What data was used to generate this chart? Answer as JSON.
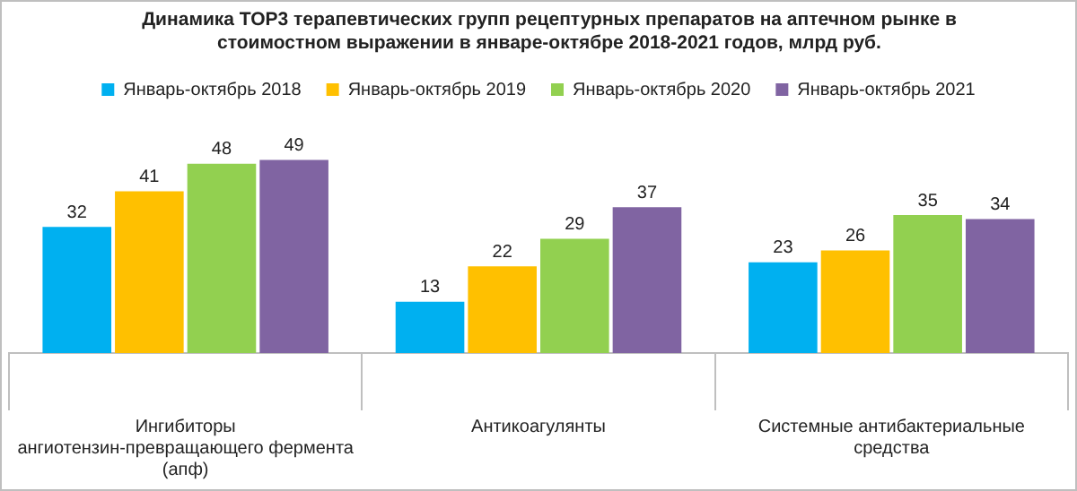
{
  "chart_data": {
    "type": "bar",
    "title": "Динамика ТОР3 терапевтических групп рецептурных  препаратов на аптечном рынке в стоимостном выражении в январе-октябре 2018-2021 годов, млрд руб.",
    "categories": [
      "Ингибиторы ангиотензин-превращающего фермента (апф)",
      "Антикоагулянты",
      "Системные антибактериальные средства"
    ],
    "series": [
      {
        "name": "Январь-октябрь 2018",
        "color": "#00b0f0",
        "values": [
          32,
          13,
          23
        ]
      },
      {
        "name": "Январь-октябрь 2019",
        "color": "#ffc000",
        "values": [
          41,
          22,
          26
        ]
      },
      {
        "name": "Январь-октябрь 2020",
        "color": "#92d050",
        "values": [
          48,
          29,
          35
        ]
      },
      {
        "name": "Январь-октябрь 2021",
        "color": "#8064a2",
        "values": [
          49,
          37,
          34
        ]
      }
    ],
    "data_labels": true,
    "legend": "top",
    "grid": false
  }
}
